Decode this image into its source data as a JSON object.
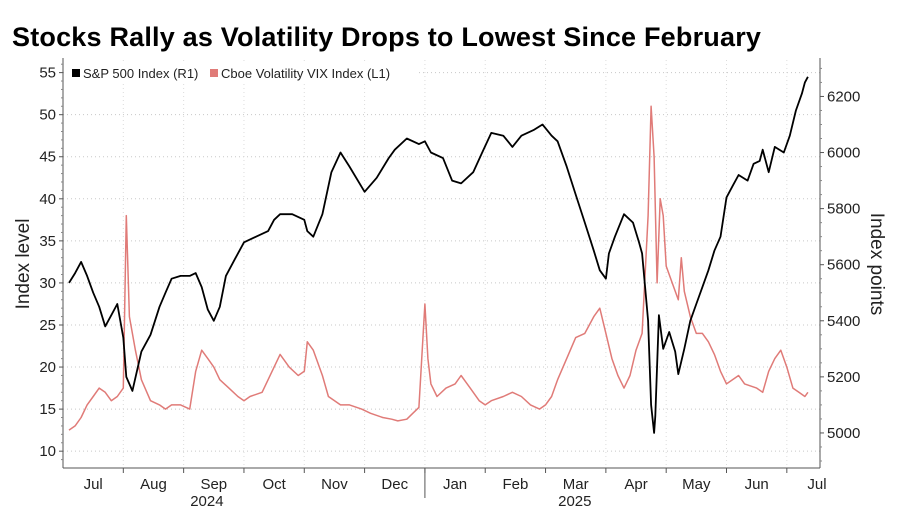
{
  "chart_data": {
    "type": "line",
    "title": "Stocks Rally as Volatility Drops to Lowest Since February",
    "left_axis": {
      "label": "Index level",
      "ylim": [
        8,
        56.5
      ],
      "ticks": [
        10,
        15,
        20,
        25,
        30,
        35,
        40,
        45,
        50,
        55
      ]
    },
    "right_axis": {
      "label": "Index points",
      "ylim": [
        4875,
        6330
      ],
      "ticks": [
        5000,
        5200,
        5400,
        5600,
        5800,
        6000,
        6200
      ]
    },
    "x_axis": {
      "months": [
        {
          "label": "Jul",
          "pos": 0.5
        },
        {
          "label": "Aug",
          "pos": 1.5
        },
        {
          "label": "Sep",
          "pos": 2.5
        },
        {
          "label": "Oct",
          "pos": 3.5
        },
        {
          "label": "Nov",
          "pos": 4.5
        },
        {
          "label": "Dec",
          "pos": 5.5
        },
        {
          "label": "Jan",
          "pos": 6.5
        },
        {
          "label": "Feb",
          "pos": 7.5
        },
        {
          "label": "Mar",
          "pos": 8.5
        },
        {
          "label": "Apr",
          "pos": 9.5
        },
        {
          "label": "May",
          "pos": 10.5
        },
        {
          "label": "Jun",
          "pos": 11.5
        },
        {
          "label": "Jul",
          "pos": 12.5
        }
      ],
      "years": [
        {
          "label": "2024",
          "pos": 2.75
        },
        {
          "label": "2025",
          "pos": 8.85
        }
      ],
      "range": [
        0.1,
        12.35
      ]
    },
    "legend": {
      "placement": "top-left"
    },
    "series": [
      {
        "name": "S&P 500 Index (R1)",
        "axis": "right",
        "color": "#000000",
        "points": [
          [
            0.1,
            5535
          ],
          [
            0.2,
            5570
          ],
          [
            0.3,
            5610
          ],
          [
            0.4,
            5560
          ],
          [
            0.5,
            5500
          ],
          [
            0.6,
            5450
          ],
          [
            0.7,
            5380
          ],
          [
            0.8,
            5420
          ],
          [
            0.9,
            5460
          ],
          [
            1.0,
            5340
          ],
          [
            1.05,
            5200
          ],
          [
            1.15,
            5150
          ],
          [
            1.3,
            5290
          ],
          [
            1.45,
            5350
          ],
          [
            1.6,
            5450
          ],
          [
            1.7,
            5500
          ],
          [
            1.8,
            5550
          ],
          [
            1.95,
            5560
          ],
          [
            2.1,
            5560
          ],
          [
            2.2,
            5570
          ],
          [
            2.3,
            5520
          ],
          [
            2.4,
            5440
          ],
          [
            2.5,
            5400
          ],
          [
            2.6,
            5450
          ],
          [
            2.7,
            5560
          ],
          [
            2.85,
            5620
          ],
          [
            3.0,
            5680
          ],
          [
            3.2,
            5700
          ],
          [
            3.4,
            5720
          ],
          [
            3.5,
            5760
          ],
          [
            3.6,
            5780
          ],
          [
            3.8,
            5780
          ],
          [
            4.0,
            5760
          ],
          [
            4.05,
            5720
          ],
          [
            4.15,
            5700
          ],
          [
            4.3,
            5780
          ],
          [
            4.45,
            5930
          ],
          [
            4.6,
            6000
          ],
          [
            4.75,
            5950
          ],
          [
            5.0,
            5860
          ],
          [
            5.2,
            5910
          ],
          [
            5.4,
            5980
          ],
          [
            5.5,
            6010
          ],
          [
            5.7,
            6050
          ],
          [
            5.9,
            6030
          ],
          [
            6.0,
            6040
          ],
          [
            6.1,
            6000
          ],
          [
            6.3,
            5980
          ],
          [
            6.45,
            5900
          ],
          [
            6.6,
            5890
          ],
          [
            6.8,
            5930
          ],
          [
            6.95,
            6000
          ],
          [
            7.1,
            6070
          ],
          [
            7.3,
            6060
          ],
          [
            7.45,
            6020
          ],
          [
            7.6,
            6060
          ],
          [
            7.8,
            6080
          ],
          [
            7.95,
            6100
          ],
          [
            8.1,
            6060
          ],
          [
            8.2,
            6040
          ],
          [
            8.35,
            5950
          ],
          [
            8.5,
            5850
          ],
          [
            8.65,
            5750
          ],
          [
            8.8,
            5650
          ],
          [
            8.9,
            5580
          ],
          [
            9.0,
            5550
          ],
          [
            9.05,
            5640
          ],
          [
            9.15,
            5700
          ],
          [
            9.3,
            5780
          ],
          [
            9.45,
            5750
          ],
          [
            9.55,
            5680
          ],
          [
            9.6,
            5640
          ],
          [
            9.65,
            5520
          ],
          [
            9.7,
            5400
          ],
          [
            9.75,
            5100
          ],
          [
            9.8,
            5000
          ],
          [
            9.82,
            5060
          ],
          [
            9.88,
            5420
          ],
          [
            9.95,
            5300
          ],
          [
            10.05,
            5360
          ],
          [
            10.15,
            5290
          ],
          [
            10.2,
            5210
          ],
          [
            10.3,
            5300
          ],
          [
            10.4,
            5400
          ],
          [
            10.5,
            5460
          ],
          [
            10.6,
            5520
          ],
          [
            10.7,
            5580
          ],
          [
            10.8,
            5650
          ],
          [
            10.9,
            5700
          ],
          [
            11.0,
            5840
          ],
          [
            11.1,
            5880
          ],
          [
            11.2,
            5920
          ],
          [
            11.35,
            5900
          ],
          [
            11.45,
            5960
          ],
          [
            11.55,
            5970
          ],
          [
            11.6,
            6010
          ],
          [
            11.7,
            5930
          ],
          [
            11.8,
            6020
          ],
          [
            11.95,
            6000
          ],
          [
            12.05,
            6060
          ],
          [
            12.15,
            6150
          ],
          [
            12.25,
            6210
          ],
          [
            12.3,
            6250
          ],
          [
            12.35,
            6270
          ]
        ]
      },
      {
        "name": "Cboe Volatility VIX Index (L1)",
        "axis": "left",
        "color": "#e07b78",
        "points": [
          [
            0.1,
            12.5
          ],
          [
            0.2,
            13.0
          ],
          [
            0.3,
            14.0
          ],
          [
            0.4,
            15.5
          ],
          [
            0.5,
            16.5
          ],
          [
            0.6,
            17.5
          ],
          [
            0.7,
            17.0
          ],
          [
            0.8,
            16.0
          ],
          [
            0.9,
            16.5
          ],
          [
            1.0,
            17.5
          ],
          [
            1.05,
            38.0
          ],
          [
            1.1,
            26.0
          ],
          [
            1.2,
            22.0
          ],
          [
            1.3,
            18.5
          ],
          [
            1.45,
            16.0
          ],
          [
            1.6,
            15.5
          ],
          [
            1.7,
            15.0
          ],
          [
            1.8,
            15.5
          ],
          [
            1.95,
            15.5
          ],
          [
            2.1,
            15.0
          ],
          [
            2.2,
            19.5
          ],
          [
            2.3,
            22.0
          ],
          [
            2.4,
            21.0
          ],
          [
            2.5,
            20.0
          ],
          [
            2.6,
            18.5
          ],
          [
            2.75,
            17.5
          ],
          [
            2.9,
            16.5
          ],
          [
            3.0,
            16.0
          ],
          [
            3.1,
            16.5
          ],
          [
            3.3,
            17.0
          ],
          [
            3.4,
            18.5
          ],
          [
            3.5,
            20.0
          ],
          [
            3.6,
            21.5
          ],
          [
            3.75,
            20.0
          ],
          [
            3.9,
            19.0
          ],
          [
            4.0,
            19.5
          ],
          [
            4.05,
            23.0
          ],
          [
            4.15,
            22.0
          ],
          [
            4.3,
            19.0
          ],
          [
            4.4,
            16.5
          ],
          [
            4.6,
            15.5
          ],
          [
            4.75,
            15.5
          ],
          [
            4.95,
            15.0
          ],
          [
            5.1,
            14.5
          ],
          [
            5.3,
            14.0
          ],
          [
            5.45,
            13.8
          ],
          [
            5.55,
            13.6
          ],
          [
            5.7,
            13.8
          ],
          [
            5.8,
            14.5
          ],
          [
            5.9,
            15.2
          ],
          [
            6.0,
            27.5
          ],
          [
            6.05,
            21.0
          ],
          [
            6.1,
            18.0
          ],
          [
            6.2,
            16.5
          ],
          [
            6.35,
            17.5
          ],
          [
            6.5,
            18.0
          ],
          [
            6.6,
            19.0
          ],
          [
            6.75,
            17.5
          ],
          [
            6.9,
            16.0
          ],
          [
            7.0,
            15.5
          ],
          [
            7.1,
            16.0
          ],
          [
            7.3,
            16.5
          ],
          [
            7.45,
            17.0
          ],
          [
            7.6,
            16.5
          ],
          [
            7.75,
            15.5
          ],
          [
            7.9,
            15.0
          ],
          [
            8.0,
            15.5
          ],
          [
            8.1,
            16.5
          ],
          [
            8.2,
            18.5
          ],
          [
            8.35,
            21.0
          ],
          [
            8.5,
            23.5
          ],
          [
            8.65,
            24.0
          ],
          [
            8.8,
            26.0
          ],
          [
            8.9,
            27.0
          ],
          [
            9.0,
            24.0
          ],
          [
            9.1,
            21.0
          ],
          [
            9.2,
            19.0
          ],
          [
            9.3,
            17.5
          ],
          [
            9.4,
            19.0
          ],
          [
            9.5,
            22.0
          ],
          [
            9.6,
            24.0
          ],
          [
            9.7,
            38.0
          ],
          [
            9.75,
            51.0
          ],
          [
            9.8,
            45.0
          ],
          [
            9.85,
            30.0
          ],
          [
            9.9,
            40.0
          ],
          [
            9.95,
            38.0
          ],
          [
            10.0,
            32.0
          ],
          [
            10.1,
            30.0
          ],
          [
            10.2,
            28.0
          ],
          [
            10.25,
            33.0
          ],
          [
            10.3,
            29.0
          ],
          [
            10.4,
            26.0
          ],
          [
            10.5,
            24.0
          ],
          [
            10.6,
            24.0
          ],
          [
            10.7,
            23.0
          ],
          [
            10.8,
            21.5
          ],
          [
            10.9,
            19.5
          ],
          [
            11.0,
            18.0
          ],
          [
            11.2,
            19.0
          ],
          [
            11.3,
            18.0
          ],
          [
            11.5,
            17.5
          ],
          [
            11.6,
            17.0
          ],
          [
            11.7,
            19.5
          ],
          [
            11.8,
            21.0
          ],
          [
            11.9,
            22.0
          ],
          [
            12.0,
            20.0
          ],
          [
            12.1,
            17.5
          ],
          [
            12.2,
            17.0
          ],
          [
            12.3,
            16.5
          ],
          [
            12.35,
            17.0
          ]
        ]
      }
    ]
  }
}
